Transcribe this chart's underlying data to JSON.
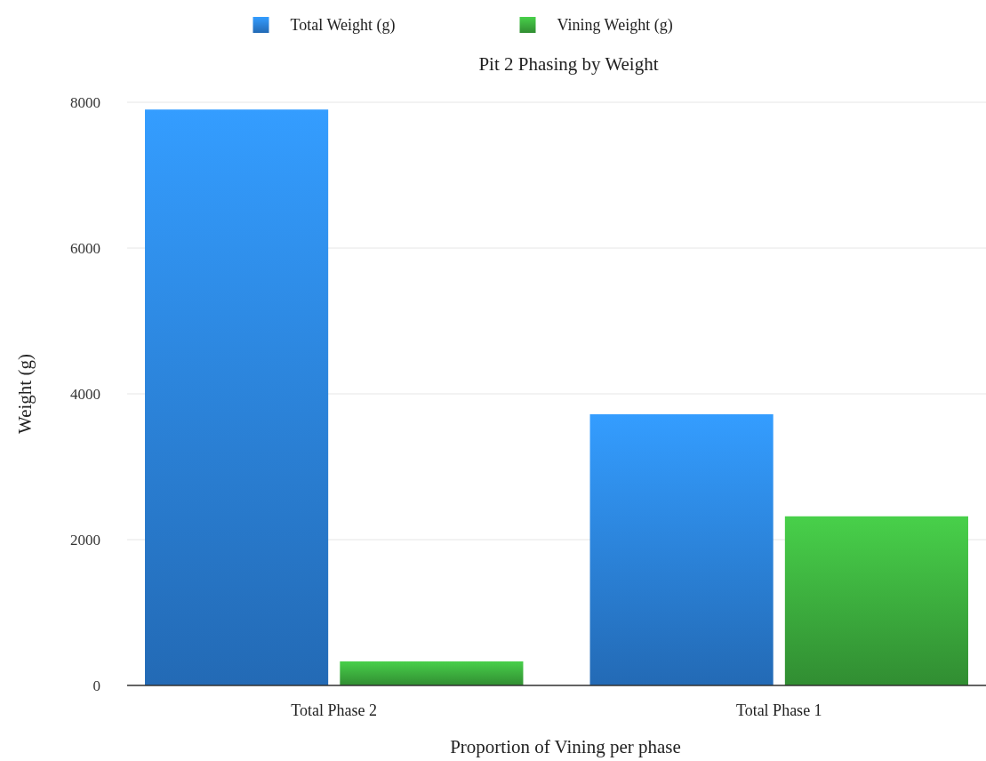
{
  "chart_data": {
    "type": "bar",
    "title": "Pit 2 Phasing by Weight",
    "xlabel": "Proportion of Vining per phase",
    "ylabel": "Weight (g)",
    "categories": [
      "Total Phase 2",
      "Total Phase 1"
    ],
    "series": [
      {
        "name": "Total Weight (g)",
        "color": "#2a7fd8",
        "values": [
          7900,
          3720
        ]
      },
      {
        "name": "Vining Weight (g)",
        "color": "#3aa83c",
        "values": [
          330,
          2320
        ]
      }
    ],
    "ylim": [
      0,
      8000
    ],
    "yticks": [
      0,
      2000,
      4000,
      6000,
      8000
    ],
    "grid": "y",
    "legend": "top"
  }
}
